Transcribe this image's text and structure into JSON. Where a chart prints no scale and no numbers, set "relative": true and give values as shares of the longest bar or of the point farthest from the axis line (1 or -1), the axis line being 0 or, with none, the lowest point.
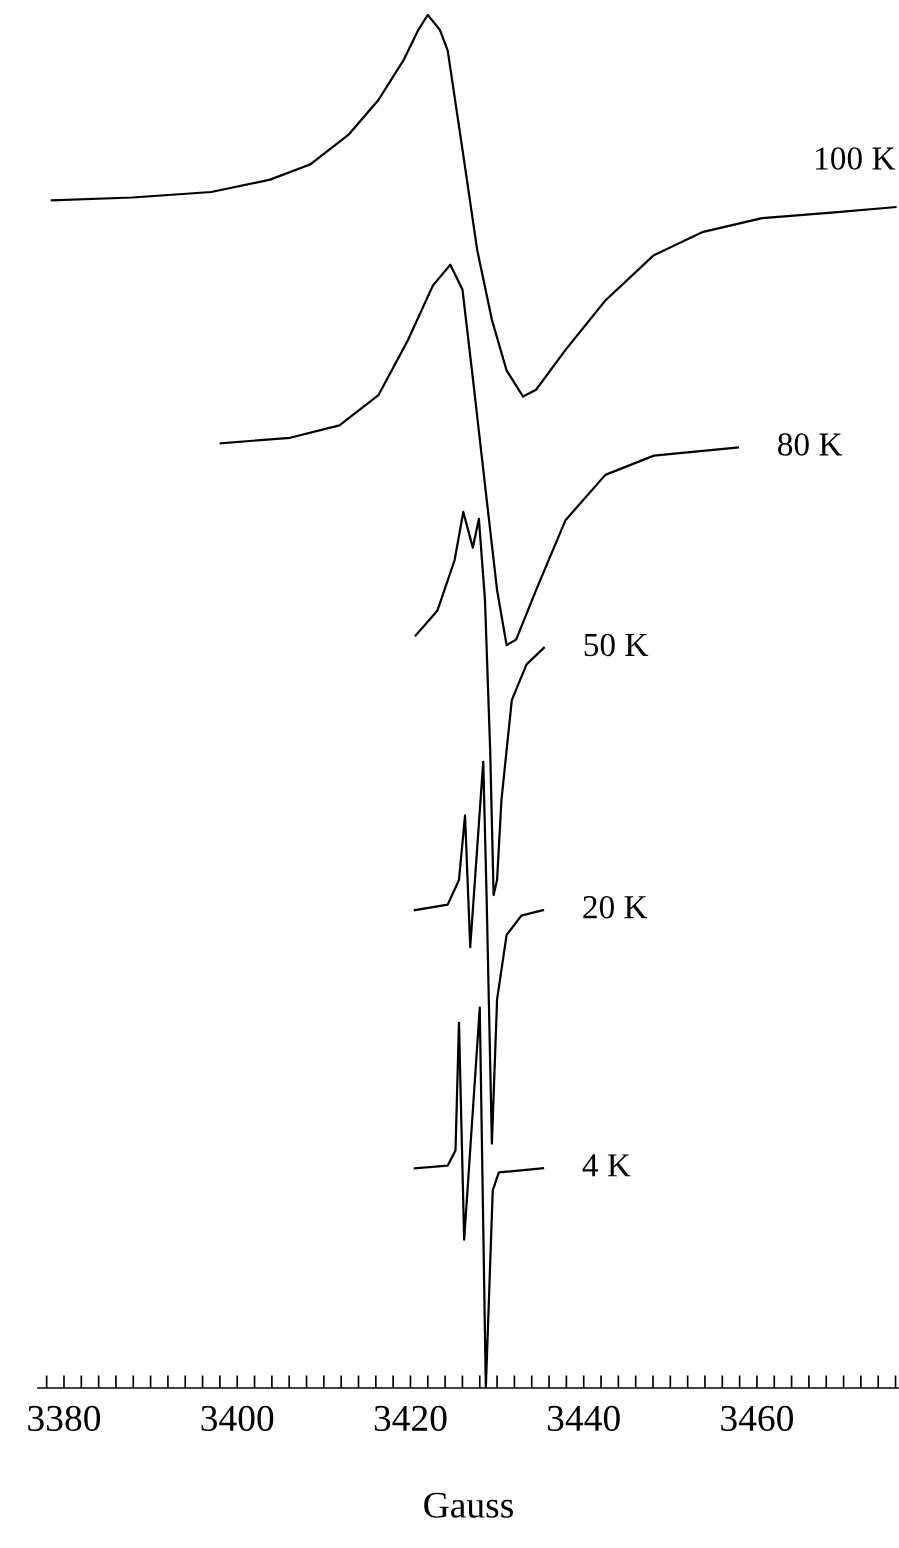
{
  "chart_data": {
    "type": "line",
    "xlabel": "Gauss",
    "relative": true,
    "grid": false,
    "legend": false,
    "tick_labels": "x",
    "marker": "none",
    "line_style": "solid",
    "xlim": [
      3377.0,
      3476.4
    ],
    "xticks": [
      {
        "value": 3378,
        "label": null
      },
      {
        "value": 3380,
        "label": "3380"
      },
      {
        "value": 3382,
        "label": null
      },
      {
        "value": 3384,
        "label": null
      },
      {
        "value": 3386,
        "label": null
      },
      {
        "value": 3388,
        "label": null
      },
      {
        "value": 3390,
        "label": null
      },
      {
        "value": 3392,
        "label": null
      },
      {
        "value": 3394,
        "label": null
      },
      {
        "value": 3396,
        "label": null
      },
      {
        "value": 3398,
        "label": null
      },
      {
        "value": 3400,
        "label": "3400"
      },
      {
        "value": 3402,
        "label": null
      },
      {
        "value": 3404,
        "label": null
      },
      {
        "value": 3406,
        "label": null
      },
      {
        "value": 3408,
        "label": null
      },
      {
        "value": 3410,
        "label": null
      },
      {
        "value": 3412,
        "label": null
      },
      {
        "value": 3414,
        "label": null
      },
      {
        "value": 3416,
        "label": null
      },
      {
        "value": 3418,
        "label": null
      },
      {
        "value": 3420,
        "label": "3420"
      },
      {
        "value": 3422,
        "label": null
      },
      {
        "value": 3424,
        "label": null
      },
      {
        "value": 3426,
        "label": null
      },
      {
        "value": 3428,
        "label": null
      },
      {
        "value": 3430,
        "label": null
      },
      {
        "value": 3432,
        "label": null
      },
      {
        "value": 3434,
        "label": null
      },
      {
        "value": 3436,
        "label": null
      },
      {
        "value": 3438,
        "label": null
      },
      {
        "value": 3440,
        "label": "3440"
      },
      {
        "value": 3442,
        "label": null
      },
      {
        "value": 3444,
        "label": null
      },
      {
        "value": 3446,
        "label": null
      },
      {
        "value": 3448,
        "label": null
      },
      {
        "value": 3450,
        "label": null
      },
      {
        "value": 3452,
        "label": null
      },
      {
        "value": 3454,
        "label": null
      },
      {
        "value": 3456,
        "label": null
      },
      {
        "value": 3458,
        "label": null
      },
      {
        "value": 3460,
        "label": "3460"
      },
      {
        "value": 3462,
        "label": null
      },
      {
        "value": 3464,
        "label": null
      },
      {
        "value": 3466,
        "label": null
      },
      {
        "value": 3468,
        "label": null
      },
      {
        "value": 3470,
        "label": null
      },
      {
        "value": 3472,
        "label": null
      },
      {
        "value": 3474,
        "label": null
      },
      {
        "value": 3476,
        "label": null
      }
    ],
    "series": [
      {
        "name": "100 K",
        "color": "#000000",
        "x": [
          3378.6,
          3387.9,
          3397.0,
          3403.8,
          3408.4,
          3412.9,
          3416.3,
          3419.2,
          3420.9,
          3422.0,
          3423.4,
          3424.3,
          3426.0,
          3427.7,
          3429.4,
          3431.1,
          3433.0,
          3434.5,
          3437.9,
          3442.5,
          3448.1,
          3453.8,
          3460.6,
          3468.6,
          3476.0
        ],
        "values": [
          0.865,
          0.867,
          0.871,
          0.88,
          0.891,
          0.913,
          0.938,
          0.967,
          0.989,
          1.0,
          0.989,
          0.974,
          0.902,
          0.829,
          0.778,
          0.741,
          0.722,
          0.727,
          0.756,
          0.792,
          0.825,
          0.842,
          0.852,
          0.856,
          0.86
        ]
      },
      {
        "name": "80 K",
        "color": "#000000",
        "x": [
          3398.1,
          3406.1,
          3411.8,
          3416.3,
          3419.7,
          3422.6,
          3424.6,
          3426.0,
          3427.1,
          3428.8,
          3430.0,
          3431.1,
          3432.2,
          3434.5,
          3437.9,
          3442.5,
          3448.1,
          3457.8
        ],
        "values": [
          0.688,
          0.692,
          0.701,
          0.723,
          0.763,
          0.803,
          0.818,
          0.8,
          0.741,
          0.647,
          0.581,
          0.541,
          0.545,
          0.581,
          0.632,
          0.665,
          0.679,
          0.685
        ]
      },
      {
        "name": "50 K",
        "color": "#000000",
        "x": [
          3420.6,
          3423.1,
          3425.1,
          3426.1,
          3427.2,
          3427.9,
          3428.6,
          3429.2,
          3429.6,
          3430.0,
          3430.5,
          3431.7,
          3433.4,
          3435.4
        ],
        "values": [
          0.548,
          0.566,
          0.603,
          0.638,
          0.612,
          0.633,
          0.574,
          0.465,
          0.359,
          0.37,
          0.428,
          0.501,
          0.527,
          0.539
        ]
      },
      {
        "name": "20 K",
        "color": "#000000",
        "x": [
          3420.5,
          3424.3,
          3425.6,
          3426.3,
          3426.9,
          3428.4,
          3428.8,
          3429.4,
          3430.0,
          3431.1,
          3432.8,
          3435.3
        ],
        "values": [
          0.348,
          0.352,
          0.37,
          0.417,
          0.321,
          0.456,
          0.355,
          0.178,
          0.283,
          0.33,
          0.344,
          0.348
        ]
      },
      {
        "name": "4 K",
        "color": "#000000",
        "x": [
          3420.5,
          3424.3,
          3425.2,
          3425.6,
          3426.2,
          3428.0,
          3428.7,
          3429.5,
          3430.2,
          3435.3
        ],
        "values": [
          0.16,
          0.162,
          0.173,
          0.266,
          0.108,
          0.277,
          0.0,
          0.144,
          0.157,
          0.16
        ]
      }
    ]
  }
}
